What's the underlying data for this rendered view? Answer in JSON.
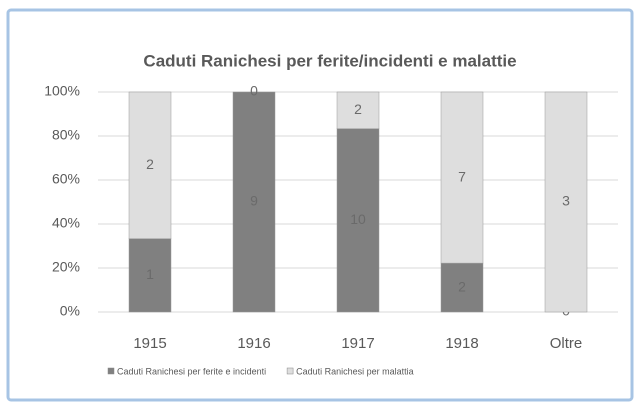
{
  "chart_data": {
    "type": "bar",
    "stacking": "percent",
    "title": "Caduti Ranichesi per ferite/incidenti e malattie",
    "categories": [
      "1915",
      "1916",
      "1917",
      "1918",
      "Oltre"
    ],
    "series": [
      {
        "name": "Caduti Ranichesi per ferite e incidenti",
        "color": "#808080",
        "values": [
          1,
          9,
          10,
          2,
          0
        ]
      },
      {
        "name": "Caduti Ranichesi per malattia",
        "color": "#dedede",
        "values": [
          2,
          0,
          2,
          7,
          3
        ]
      }
    ],
    "ylim": [
      0,
      100
    ],
    "yticks": [
      {
        "value": 0,
        "label": "0%"
      },
      {
        "value": 20,
        "label": "20%"
      },
      {
        "value": 40,
        "label": "40%"
      },
      {
        "value": 60,
        "label": "60%"
      },
      {
        "value": 80,
        "label": "80%"
      },
      {
        "value": 100,
        "label": "100%"
      }
    ],
    "grid": true,
    "legend": "bottom"
  }
}
